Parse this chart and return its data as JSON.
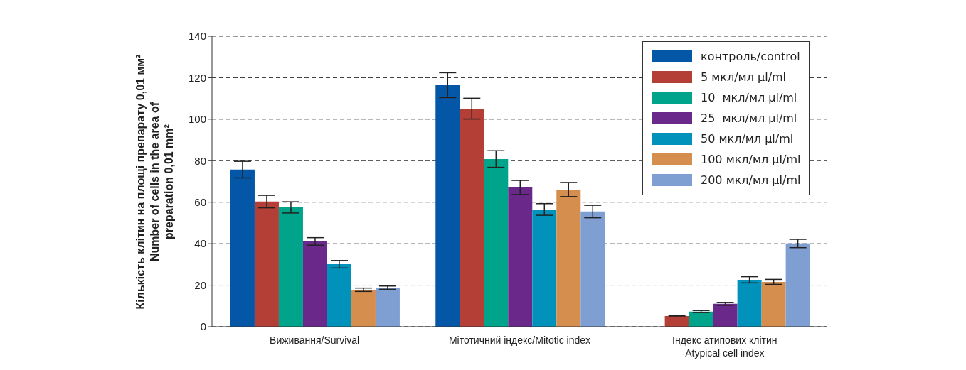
{
  "chart_data": {
    "type": "bar",
    "ylabel": "Кількість клітин на площі препарату 0,01 мм²\nNumber of cells in the area of\npreparation 0,01 mm²",
    "categories": [
      "Виживання/Survival",
      "Мітотичний індекс/Mitotic index",
      "Індекс атипових клітин\nAtypical cell index"
    ],
    "series": [
      {
        "name": "контроль/control",
        "color": "#0457a6",
        "values": [
          75.7,
          116.4,
          null
        ],
        "errors": [
          4,
          6,
          null
        ]
      },
      {
        "name": "5 мкл/мл µl/ml",
        "color": "#b33f37",
        "values": [
          60.3,
          105.1,
          5.1
        ],
        "errors": [
          3,
          5,
          0.3
        ]
      },
      {
        "name": "10  мкл/мл µl/ml",
        "color": "#00a48a",
        "values": [
          57.5,
          80.8,
          7.3
        ],
        "errors": [
          2.7,
          4,
          0.5
        ]
      },
      {
        "name": "25  мкл/мл µl/ml",
        "color": "#69288a",
        "values": [
          41.1,
          67.1,
          11
        ],
        "errors": [
          1.8,
          3.4,
          0.7
        ]
      },
      {
        "name": "50 мкл/мл µl/ml",
        "color": "#0192bc",
        "values": [
          30.1,
          56.5,
          22.6
        ],
        "errors": [
          1.8,
          2.8,
          1.5
        ]
      },
      {
        "name": "100 мкл/мл µl/ml",
        "color": "#d68e4e",
        "values": [
          17.8,
          66.1,
          21.6
        ],
        "errors": [
          0.8,
          3.4,
          1.2
        ]
      },
      {
        "name": "200 мкл/мл µl/ml",
        "color": "#7f9fd3",
        "values": [
          18.8,
          55.5,
          40.1
        ],
        "errors": [
          0.8,
          3,
          2
        ]
      }
    ],
    "ylim": [
      0,
      140
    ],
    "yticks": [
      0,
      20,
      40,
      60,
      80,
      100,
      120,
      140
    ],
    "grid": "y",
    "line_style": "dashed",
    "legend": "top right"
  }
}
